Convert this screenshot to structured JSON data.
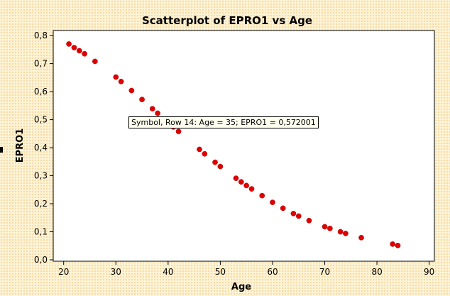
{
  "chart_data": {
    "type": "scatter",
    "title": "Scatterplot of EPRO1 vs Age",
    "xlabel": "Age",
    "ylabel": "EPRO1",
    "xlim": [
      18,
      91
    ],
    "ylim": [
      -0.005,
      0.818
    ],
    "xticks": [
      20,
      30,
      40,
      50,
      60,
      70,
      80,
      90
    ],
    "yticks": [
      0.0,
      0.1,
      0.2,
      0.3,
      0.4,
      0.5,
      0.6,
      0.7,
      0.8
    ],
    "ytick_labels": [
      "0,0",
      "0,1",
      "0,2",
      "0,3",
      "0,4",
      "0,5",
      "0,6",
      "0,7",
      "0,8"
    ],
    "xtick_labels": [
      "20",
      "30",
      "40",
      "50",
      "60",
      "70",
      "80",
      "90"
    ],
    "grid": false,
    "marker_color": "#e00000",
    "points": [
      {
        "x": 21,
        "y": 0.77
      },
      {
        "x": 22,
        "y": 0.757
      },
      {
        "x": 23,
        "y": 0.746
      },
      {
        "x": 24,
        "y": 0.735
      },
      {
        "x": 26,
        "y": 0.708
      },
      {
        "x": 30,
        "y": 0.652
      },
      {
        "x": 31,
        "y": 0.636
      },
      {
        "x": 33,
        "y": 0.604
      },
      {
        "x": 35,
        "y": 0.572
      },
      {
        "x": 37,
        "y": 0.539
      },
      {
        "x": 38,
        "y": 0.523
      },
      {
        "x": 41,
        "y": 0.474
      },
      {
        "x": 42,
        "y": 0.458
      },
      {
        "x": 46,
        "y": 0.394
      },
      {
        "x": 47,
        "y": 0.378
      },
      {
        "x": 49,
        "y": 0.348
      },
      {
        "x": 50,
        "y": 0.333
      },
      {
        "x": 53,
        "y": 0.291
      },
      {
        "x": 54,
        "y": 0.278
      },
      {
        "x": 55,
        "y": 0.265
      },
      {
        "x": 56,
        "y": 0.253
      },
      {
        "x": 58,
        "y": 0.229
      },
      {
        "x": 60,
        "y": 0.205
      },
      {
        "x": 62,
        "y": 0.184
      },
      {
        "x": 64,
        "y": 0.165
      },
      {
        "x": 65,
        "y": 0.156
      },
      {
        "x": 67,
        "y": 0.14
      },
      {
        "x": 70,
        "y": 0.118
      },
      {
        "x": 71,
        "y": 0.112
      },
      {
        "x": 73,
        "y": 0.1
      },
      {
        "x": 74,
        "y": 0.094
      },
      {
        "x": 77,
        "y": 0.079
      },
      {
        "x": 83,
        "y": 0.056
      },
      {
        "x": 84,
        "y": 0.051
      }
    ],
    "tooltip": "Symbol, Row 14: Age = 35; EPRO1 = 0,572001"
  },
  "colors": {
    "background": "#fdf3d4",
    "plot_area": "#ffffff",
    "marker": "#e00000"
  }
}
